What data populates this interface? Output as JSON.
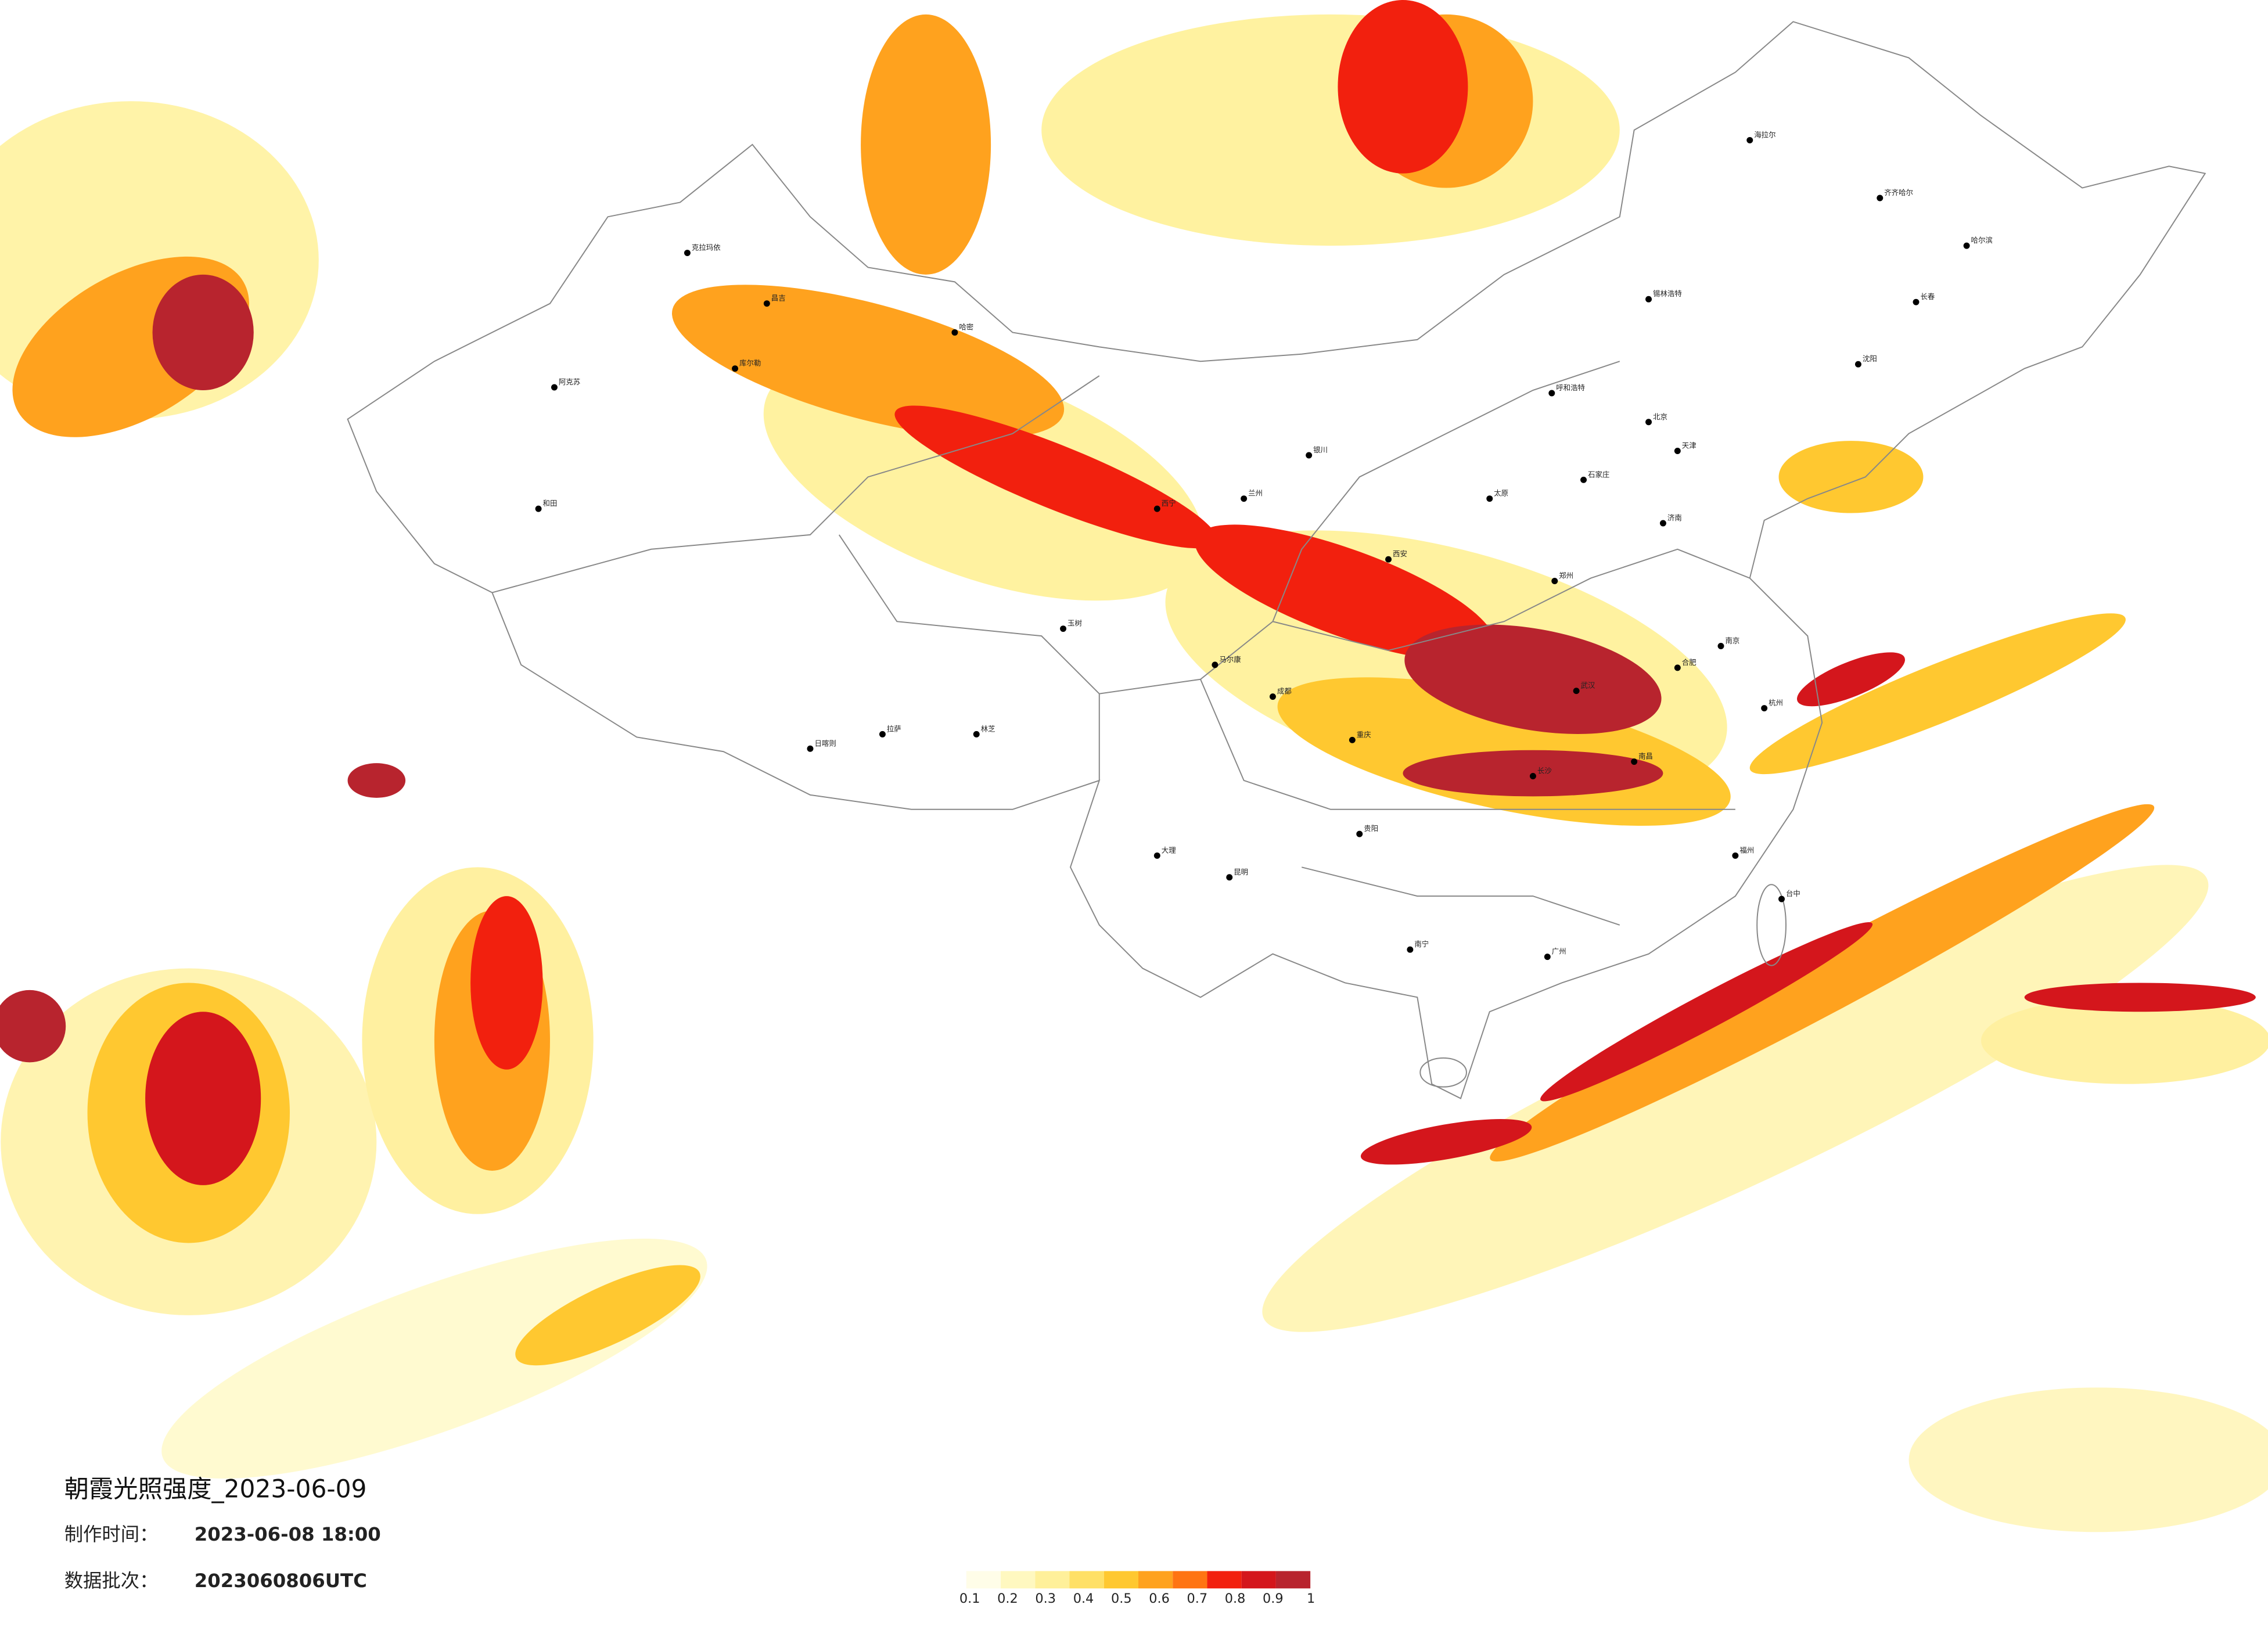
{
  "title": "朝霞光照强度_2023-06-09",
  "made_label": "制作时间：",
  "made_time": "2023-06-08 18:00",
  "batch_label": "数据批次：",
  "batch": "2023060806UTC",
  "legend": {
    "ticks": [
      0.1,
      0.2,
      0.3,
      0.4,
      0.5,
      0.6,
      0.7,
      0.8,
      0.9,
      1
    ],
    "colors": [
      "#fffde8",
      "#fff8c0",
      "#fff09a",
      "#ffe066",
      "#ffc830",
      "#ffa21e",
      "#ff7412",
      "#f2200e",
      "#d4161c",
      "#b8242e"
    ]
  },
  "cities": [
    "阿克苏",
    "和田",
    "库尔勒",
    "昌吉",
    "克拉玛依",
    "哈密",
    "拉萨",
    "日喀则",
    "林芝",
    "玉树",
    "马尔康",
    "呼和浩特",
    "北京",
    "天津",
    "石家庄",
    "济南",
    "郑州",
    "西安",
    "武汉",
    "长沙",
    "南昌",
    "杭州",
    "南京",
    "合肥",
    "福州",
    "广州",
    "南宁",
    "贵阳",
    "昆明",
    "成都",
    "重庆",
    "哈尔滨",
    "长春",
    "沈阳",
    "海拉尔",
    "齐齐哈尔",
    "锡林浩特",
    "台中",
    "大理",
    "银川",
    "兰州",
    "西宁",
    "太原"
  ]
}
